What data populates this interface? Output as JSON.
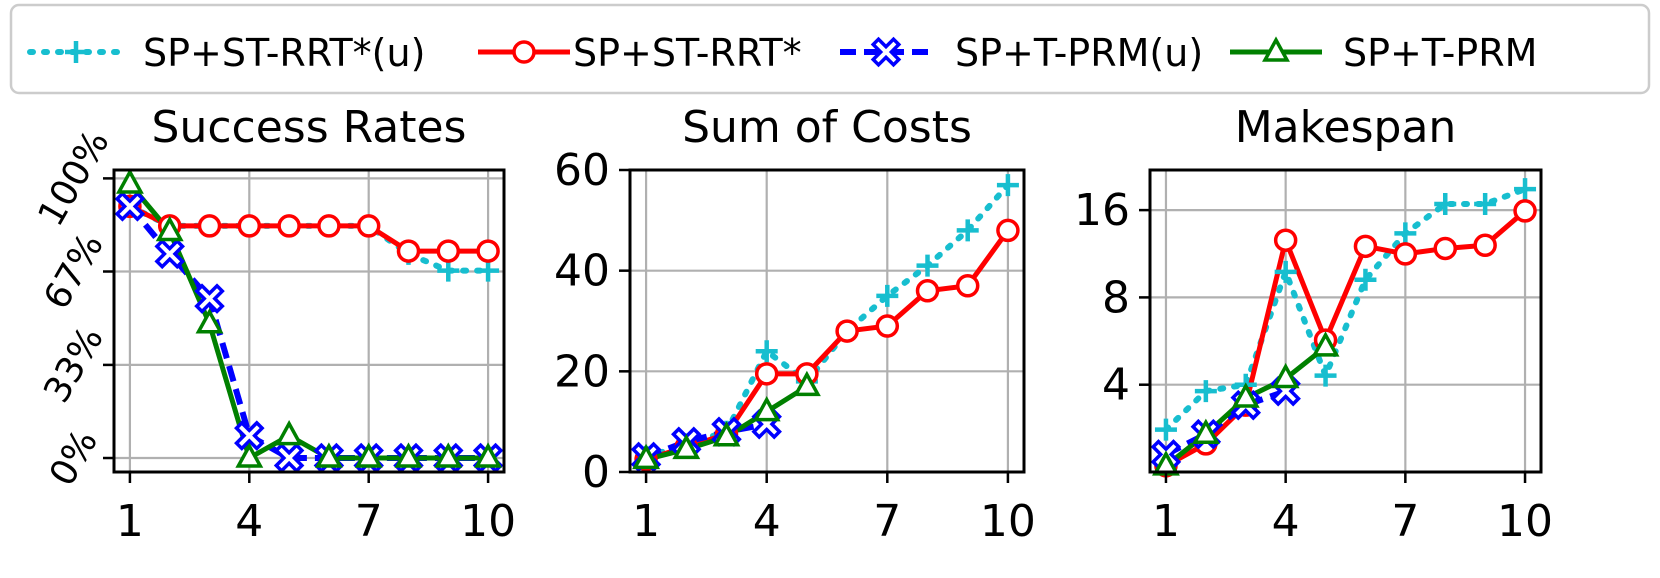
{
  "legend": {
    "placement": "top",
    "entries": [
      {
        "label": "SP+ST-RRT*(u)",
        "color": "#17becf",
        "marker": "plus",
        "linestyle": "dotted"
      },
      {
        "label": "SP+ST-RRT*",
        "color": "#ff0000",
        "marker": "circle",
        "linestyle": "solid"
      },
      {
        "label": "SP+T-PRM(u)",
        "color": "#0000ff",
        "marker": "x",
        "linestyle": "dashed"
      },
      {
        "label": "SP+T-PRM",
        "color": "#008000",
        "marker": "triangle",
        "linestyle": "solid"
      }
    ]
  },
  "chart_data": [
    {
      "type": "line",
      "title": "Success Rates",
      "xlabel": "",
      "ylabel": "",
      "xlim": [
        0.6,
        10.4
      ],
      "ylim": [
        -0.05,
        1.03
      ],
      "xticks": [
        1,
        4,
        7,
        10
      ],
      "xticklabels": [
        "1",
        "4",
        "7",
        "10"
      ],
      "yticks": [
        0,
        0.333,
        0.667,
        1.0
      ],
      "yticklabels": [
        "0%",
        "33%",
        "67%",
        "100%"
      ],
      "grid": true,
      "series": [
        {
          "name": "SP+ST-RRT*(u)",
          "x": [
            1,
            2,
            3,
            4,
            5,
            6,
            7,
            8,
            9,
            10
          ],
          "y": [
            0.9,
            0.83,
            0.83,
            0.83,
            0.83,
            0.83,
            0.83,
            0.73,
            0.67,
            0.67
          ]
        },
        {
          "name": "SP+ST-RRT*",
          "x": [
            1,
            2,
            3,
            4,
            5,
            6,
            7,
            8,
            9,
            10
          ],
          "y": [
            0.9,
            0.83,
            0.83,
            0.83,
            0.83,
            0.83,
            0.83,
            0.74,
            0.74,
            0.74
          ]
        },
        {
          "name": "SP+T-PRM(u)",
          "x": [
            1,
            2,
            3,
            4,
            5,
            6,
            7,
            8,
            9,
            10
          ],
          "y": [
            0.9,
            0.73,
            0.57,
            0.08,
            0.0,
            0.0,
            0.0,
            0.0,
            0.0,
            0.0
          ]
        },
        {
          "name": "SP+T-PRM",
          "x": [
            1,
            2,
            3,
            4,
            5,
            6,
            7,
            8,
            9,
            10
          ],
          "y": [
            0.98,
            0.81,
            0.48,
            0.0,
            0.08,
            0.0,
            0.0,
            0.0,
            0.0,
            0.0
          ]
        }
      ]
    },
    {
      "type": "line",
      "title": "Sum of Costs",
      "xlabel": "",
      "ylabel": "",
      "xlim": [
        0.6,
        10.4
      ],
      "ylim": [
        0,
        60
      ],
      "xticks": [
        1,
        4,
        7,
        10
      ],
      "xticklabels": [
        "1",
        "4",
        "7",
        "10"
      ],
      "yticks": [
        0,
        20,
        40,
        60
      ],
      "yticklabels": [
        "0",
        "20",
        "40",
        "60"
      ],
      "grid": true,
      "series": [
        {
          "name": "SP+ST-RRT*(u)",
          "x": [
            1,
            2,
            3,
            4,
            5,
            6,
            7,
            8,
            9,
            10
          ],
          "y": [
            3,
            5.5,
            8,
            24,
            18,
            28,
            35,
            41,
            48,
            57
          ]
        },
        {
          "name": "SP+ST-RRT*",
          "x": [
            1,
            2,
            3,
            4,
            5,
            6,
            7,
            8,
            9,
            10
          ],
          "y": [
            2.5,
            5,
            7.5,
            19.5,
            19.5,
            28,
            29,
            36,
            37,
            48
          ]
        },
        {
          "name": "SP+T-PRM(u)",
          "x": [
            1,
            2,
            3,
            4
          ],
          "y": [
            3,
            6,
            8,
            9.5
          ]
        },
        {
          "name": "SP+T-PRM",
          "x": [
            1,
            2,
            3,
            4,
            5
          ],
          "y": [
            2.5,
            4.5,
            7,
            12,
            17
          ]
        }
      ]
    },
    {
      "type": "line",
      "title": "Makespan",
      "xlabel": "",
      "ylabel": "",
      "yscale": "log2",
      "xlim": [
        0.6,
        10.4
      ],
      "ylim": [
        2.0,
        22.0
      ],
      "xticks": [
        1,
        4,
        7,
        10
      ],
      "xticklabels": [
        "1",
        "4",
        "7",
        "10"
      ],
      "yticks": [
        4,
        8,
        16
      ],
      "yticklabels": [
        "4",
        "8",
        "16"
      ],
      "grid": true,
      "series": [
        {
          "name": "SP+ST-RRT*(u)",
          "x": [
            1,
            2,
            3,
            4,
            5,
            6,
            7,
            8,
            9,
            10
          ],
          "y": [
            2.8,
            3.8,
            4.0,
            9.8,
            4.3,
            9.2,
            13.3,
            16.8,
            16.8,
            18.9
          ]
        },
        {
          "name": "SP+ST-RRT*",
          "x": [
            1,
            2,
            3,
            4,
            5,
            6,
            7,
            8,
            9,
            10
          ],
          "y": [
            2.1,
            2.5,
            3.4,
            12.6,
            5.7,
            12.0,
            11.3,
            11.8,
            12.1,
            15.9
          ]
        },
        {
          "name": "SP+T-PRM(u)",
          "x": [
            1,
            2,
            3,
            4
          ],
          "y": [
            2.3,
            2.7,
            3.4,
            3.8
          ]
        },
        {
          "name": "SP+T-PRM",
          "x": [
            1,
            2,
            3,
            4,
            5
          ],
          "y": [
            2.1,
            2.7,
            3.6,
            4.2,
            5.4
          ]
        }
      ]
    }
  ]
}
